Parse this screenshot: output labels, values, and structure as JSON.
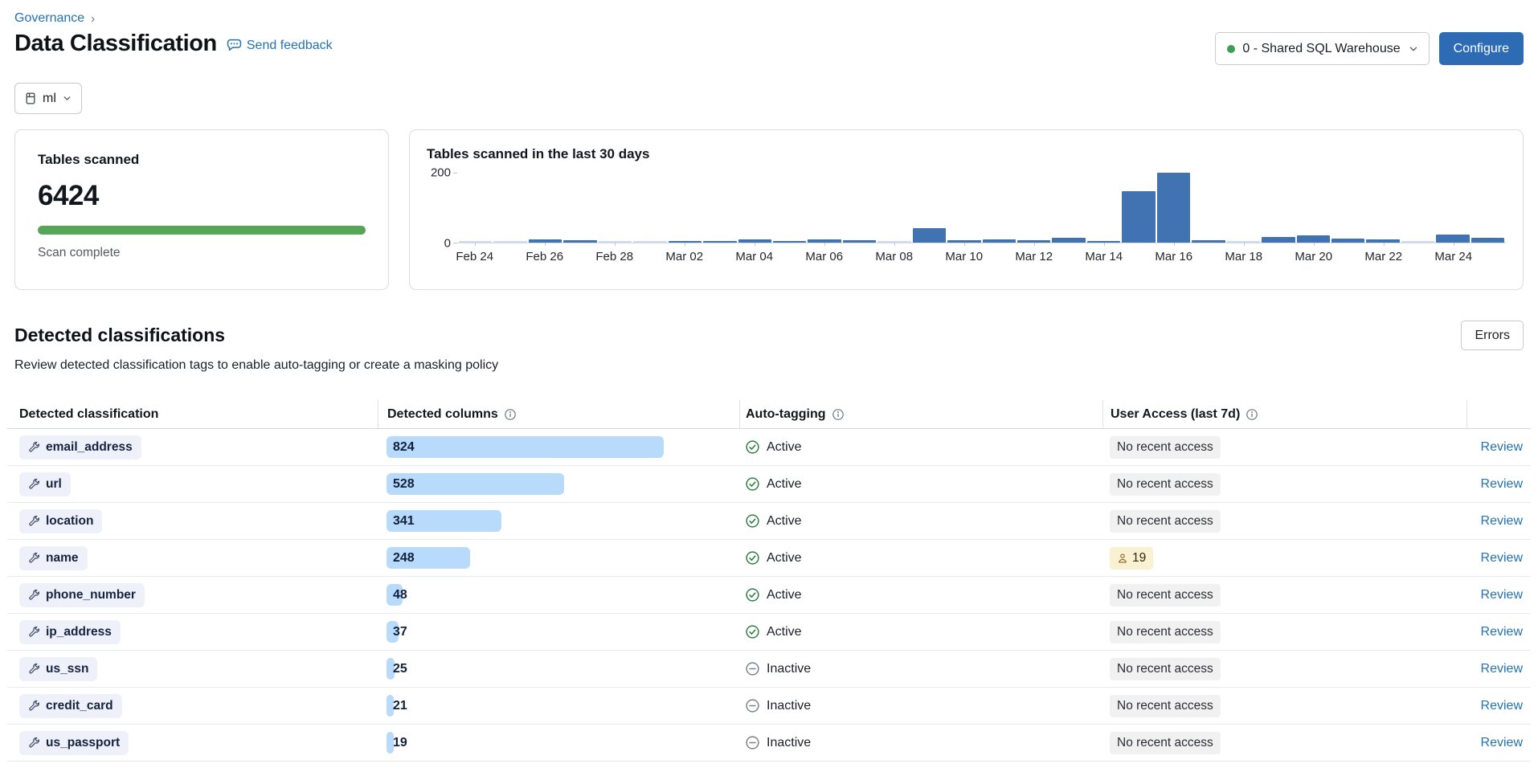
{
  "breadcrumb": {
    "label": "Governance"
  },
  "page_header": {
    "title": "Data Classification",
    "feedback_label": "Send feedback"
  },
  "toolbar": {
    "warehouse_label": "0 - Shared SQL Warehouse",
    "configure_label": "Configure",
    "catalog_label": "ml"
  },
  "summary_card": {
    "title": "Tables scanned",
    "count": "6424",
    "status": "Scan complete",
    "progress_color": "#57a559",
    "progress_percent": 100
  },
  "chart_card": {
    "title": "Tables scanned in the last 30 days"
  },
  "chart_data": {
    "type": "bar",
    "title": "Tables scanned in the last 30 days",
    "x": [
      "Feb 24",
      "Feb 25",
      "Feb 26",
      "Feb 27",
      "Feb 28",
      "Mar 01",
      "Mar 02",
      "Mar 03",
      "Mar 04",
      "Mar 05",
      "Mar 06",
      "Mar 07",
      "Mar 08",
      "Mar 09",
      "Mar 10",
      "Mar 11",
      "Mar 12",
      "Mar 13",
      "Mar 14",
      "Mar 15",
      "Mar 16",
      "Mar 17",
      "Mar 18",
      "Mar 19",
      "Mar 20",
      "Mar 21",
      "Mar 22",
      "Mar 23",
      "Mar 24",
      "Mar 25"
    ],
    "values": [
      2,
      3,
      8,
      7,
      2,
      3,
      5,
      4,
      8,
      4,
      8,
      6,
      2,
      40,
      6,
      8,
      7,
      14,
      4,
      145,
      198,
      6,
      3,
      15,
      21,
      12,
      8,
      3,
      23,
      14
    ],
    "xtick_labels": [
      "Feb 24",
      "Feb 26",
      "Feb 28",
      "Mar 02",
      "Mar 04",
      "Mar 06",
      "Mar 08",
      "Mar 10",
      "Mar 12",
      "Mar 14",
      "Mar 16",
      "Mar 18",
      "Mar 20",
      "Mar 22",
      "Mar 24"
    ],
    "yticks": [
      "0",
      "200"
    ],
    "ylim": [
      0,
      200
    ],
    "grid": false,
    "legend": "none",
    "bar_color": "#4173b3",
    "light_bar_color": "#ccdcf1"
  },
  "classifications_section": {
    "title": "Detected classifications",
    "subtitle": "Review detected classification tags to enable auto-tagging or create a masking policy",
    "errors_button_label": "Errors"
  },
  "table": {
    "headers": [
      {
        "label": "Detected classification",
        "info_icon": false
      },
      {
        "label": "Detected columns",
        "info_icon": true
      },
      {
        "label": "Auto-tagging",
        "info_icon": true
      },
      {
        "label": "User Access (last 7d)",
        "info_icon": true
      }
    ],
    "review_label": "Review",
    "rows": [
      {
        "classification": "email_address",
        "detected_columns": 824,
        "auto_tagging": "Active",
        "user_access": {
          "type": "none",
          "label": "No recent access"
        }
      },
      {
        "classification": "url",
        "detected_columns": 528,
        "auto_tagging": "Active",
        "user_access": {
          "type": "none",
          "label": "No recent access"
        }
      },
      {
        "classification": "location",
        "detected_columns": 341,
        "auto_tagging": "Active",
        "user_access": {
          "type": "none",
          "label": "No recent access"
        }
      },
      {
        "classification": "name",
        "detected_columns": 248,
        "auto_tagging": "Active",
        "user_access": {
          "type": "users",
          "label": "19"
        }
      },
      {
        "classification": "phone_number",
        "detected_columns": 48,
        "auto_tagging": "Active",
        "user_access": {
          "type": "none",
          "label": "No recent access"
        }
      },
      {
        "classification": "ip_address",
        "detected_columns": 37,
        "auto_tagging": "Active",
        "user_access": {
          "type": "none",
          "label": "No recent access"
        }
      },
      {
        "classification": "us_ssn",
        "detected_columns": 25,
        "auto_tagging": "Inactive",
        "user_access": {
          "type": "none",
          "label": "No recent access"
        }
      },
      {
        "classification": "credit_card",
        "detected_columns": 21,
        "auto_tagging": "Inactive",
        "user_access": {
          "type": "none",
          "label": "No recent access"
        }
      },
      {
        "classification": "us_passport",
        "detected_columns": 19,
        "auto_tagging": "Inactive",
        "user_access": {
          "type": "none",
          "label": "No recent access"
        }
      }
    ]
  },
  "colors": {
    "link_blue": "#2272b4",
    "primary_button": "#2d6cb5",
    "status_dot_green": "#3c9e52",
    "progress_green": "#57a559",
    "active_check_green": "#2e7d43",
    "inactive_gray": "#7d8288",
    "column_bar_blue": "#b8dafb",
    "users_pill_yellow": "#faf0d2"
  }
}
